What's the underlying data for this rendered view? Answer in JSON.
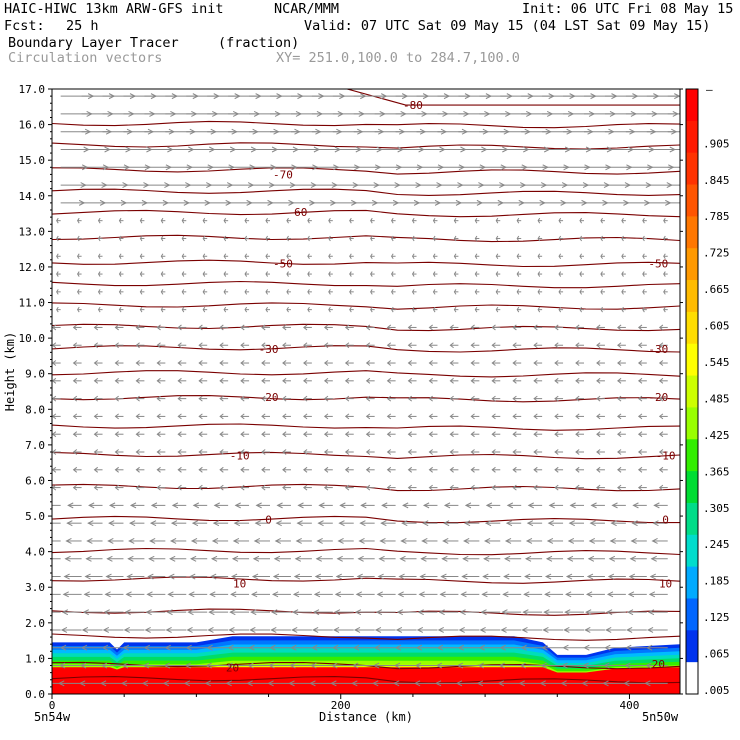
{
  "header": {
    "model_title": "HAIC-HIWC 13km ARW-GFS init",
    "org": "NCAR/MMM",
    "init": "Init: 06 UTC Fri 08 May 15",
    "fcst_label": "Fcst:",
    "fcst_value": "25 h",
    "valid": "Valid: 07 UTC Sat 09 May 15 (04 LST Sat 09 May 15)",
    "field": "Boundary Layer Tracer",
    "field_units": "(fraction)",
    "vectors": "Circulation vectors",
    "xy": "XY= 251.0,100.0 to 284.7,100.0"
  },
  "chart_data": {
    "type": "heatmap",
    "title": "Boundary Layer Tracer",
    "ylabel": "Height (km)",
    "xlabel": "Distance (km)",
    "xlim": [
      0,
      435
    ],
    "ylim": [
      0,
      17
    ],
    "y_ticks": [
      "0.0",
      "1.0",
      "2.0",
      "3.0",
      "4.0",
      "5.0",
      "6.0",
      "7.0",
      "8.0",
      "9.0",
      "10.0",
      "11.0",
      "12.0",
      "13.0",
      "14.0",
      "15.0",
      "16.0",
      "17.0"
    ],
    "x_ticks": [
      {
        "value": 0,
        "label": "0"
      },
      {
        "value": 200,
        "label": "200"
      },
      {
        "value": 400,
        "label": "400"
      }
    ],
    "x_end_labels": {
      "left": "5n54w",
      "right": "5n50w"
    },
    "colorbar": {
      "top_label": "–",
      "labels": [
        ".905",
        ".845",
        ".785",
        ".725",
        ".665",
        ".605",
        ".545",
        ".485",
        ".425",
        ".365",
        ".305",
        ".245",
        ".185",
        ".125",
        ".065",
        ".005"
      ],
      "colors": [
        "#ff0000",
        "#ff1a00",
        "#ff3300",
        "#ff5500",
        "#ff7700",
        "#ff9900",
        "#ffbb00",
        "#ffdd00",
        "#ffff00",
        "#ccff00",
        "#99ff00",
        "#33ee00",
        "#00dd33",
        "#00dd88",
        "#00ddcc",
        "#00aaff",
        "#0066ff",
        "#0033ee",
        "#ffffff"
      ]
    },
    "tracer_layer": {
      "points_km": [
        {
          "x": 0,
          "top": 1.45
        },
        {
          "x": 20,
          "top": 1.45
        },
        {
          "x": 40,
          "top": 1.45
        },
        {
          "x": 45,
          "top": 1.25
        },
        {
          "x": 50,
          "top": 1.45
        },
        {
          "x": 100,
          "top": 1.45
        },
        {
          "x": 125,
          "top": 1.62
        },
        {
          "x": 250,
          "top": 1.62
        },
        {
          "x": 320,
          "top": 1.62
        },
        {
          "x": 340,
          "top": 1.45
        },
        {
          "x": 350,
          "top": 1.1
        },
        {
          "x": 370,
          "top": 1.1
        },
        {
          "x": 390,
          "top": 1.3
        },
        {
          "x": 435,
          "top": 1.4
        }
      ]
    },
    "contour_labels": [
      {
        "value": "-80",
        "x": 250,
        "y": 16.55
      },
      {
        "value": "-70",
        "x": 160,
        "y": 14.6
      },
      {
        "value": "-60",
        "x": 170,
        "y": 13.55
      },
      {
        "value": "-50",
        "x": 160,
        "y": 12.1
      },
      {
        "value": "-50",
        "x": 420,
        "y": 12.1
      },
      {
        "value": "-30",
        "x": 150,
        "y": 9.7
      },
      {
        "value": "-30",
        "x": 420,
        "y": 9.7
      },
      {
        "value": "-20",
        "x": 150,
        "y": 8.35
      },
      {
        "value": "-20",
        "x": 420,
        "y": 8.35
      },
      {
        "value": "-10",
        "x": 130,
        "y": 6.7
      },
      {
        "value": "-10",
        "x": 425,
        "y": 6.7
      },
      {
        "value": "0",
        "x": 150,
        "y": 4.9
      },
      {
        "value": "0",
        "x": 425,
        "y": 4.9
      },
      {
        "value": "10",
        "x": 130,
        "y": 3.1
      },
      {
        "value": "10",
        "x": 425,
        "y": 3.1
      },
      {
        "value": "20",
        "x": 125,
        "y": 0.75
      },
      {
        "value": "20",
        "x": 420,
        "y": 0.85
      }
    ],
    "contour_heights_km": [
      0.4,
      0.8,
      1.6,
      2.3,
      3.2,
      4.0,
      4.9,
      5.8,
      6.7,
      7.5,
      8.3,
      9.0,
      9.7,
      10.3,
      10.9,
      11.5,
      12.1,
      12.8,
      13.5,
      14.1,
      14.7,
      15.4,
      16.0
    ]
  }
}
